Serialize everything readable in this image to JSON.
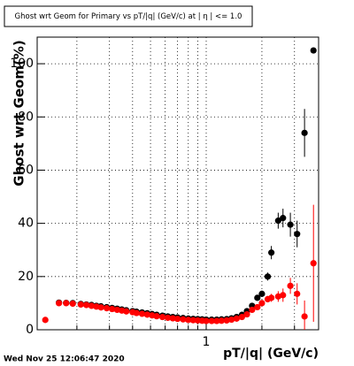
{
  "chart_data": {
    "type": "scatter",
    "title": "Ghost wrt Geom for Primary vs pT/|q| (GeV/c) at | η | <= 1.0",
    "x_label": "pT/|q| (GeV/c)",
    "y_label": "Ghost wrt Geom(%)",
    "date": "Wed Nov 25 12:06:47 2020",
    "log_x": true,
    "grid": true,
    "xlim": [
      0.122,
      4.05
    ],
    "ylim": [
      0,
      110
    ],
    "xticks": [
      1
    ],
    "xminorticks": [
      0.2,
      0.3,
      0.4,
      0.5,
      0.6,
      0.7,
      0.8,
      0.9,
      2,
      3
    ],
    "yticks": [
      0,
      20,
      40,
      60,
      80,
      100
    ],
    "series": [
      {
        "color": "#000000",
        "x": [
          0.16,
          0.175,
          0.19,
          0.21,
          0.225,
          0.24,
          0.255,
          0.27,
          0.29,
          0.31,
          0.33,
          0.35,
          0.37,
          0.4,
          0.42,
          0.45,
          0.48,
          0.51,
          0.54,
          0.58,
          0.62,
          0.66,
          0.7,
          0.75,
          0.8,
          0.85,
          0.9,
          0.95,
          1.0,
          1.07,
          1.14,
          1.21,
          1.29,
          1.37,
          1.46,
          1.56,
          1.66,
          1.77,
          1.89,
          2.0,
          2.15,
          2.25,
          2.45,
          2.6,
          2.85,
          3.1,
          3.4,
          3.8
        ],
        "values": [
          10.2,
          10.1,
          10.0,
          9.7,
          9.5,
          9.3,
          9.0,
          8.8,
          8.5,
          8.2,
          7.9,
          7.6,
          7.3,
          7.0,
          6.8,
          6.5,
          6.2,
          5.9,
          5.6,
          5.3,
          5.0,
          4.8,
          4.6,
          4.4,
          4.2,
          4.1,
          4.0,
          3.9,
          3.8,
          3.8,
          3.8,
          3.9,
          4.0,
          4.3,
          4.8,
          5.6,
          7.0,
          9,
          12,
          13.5,
          20,
          29,
          41,
          42,
          39.5,
          36,
          74,
          105
        ],
        "errors": [
          0.3,
          0.3,
          0.3,
          0.3,
          0.3,
          0.3,
          0.3,
          0.3,
          0.3,
          0.3,
          0.3,
          0.3,
          0.3,
          0.3,
          0.3,
          0.3,
          0.3,
          0.3,
          0.3,
          0.3,
          0.3,
          0.3,
          0.3,
          0.3,
          0.3,
          0.3,
          0.3,
          0.3,
          0.3,
          0.3,
          0.3,
          0.3,
          0.3,
          0.3,
          0.3,
          0.3,
          0.5,
          0.7,
          0.8,
          1.2,
          1.5,
          2.5,
          3,
          3.5,
          4.5,
          5,
          9,
          1
        ]
      },
      {
        "color": "#ff0000",
        "x": [
          0.135,
          0.16,
          0.175,
          0.19,
          0.21,
          0.225,
          0.24,
          0.255,
          0.27,
          0.29,
          0.31,
          0.33,
          0.35,
          0.37,
          0.4,
          0.42,
          0.45,
          0.48,
          0.51,
          0.54,
          0.58,
          0.62,
          0.66,
          0.7,
          0.75,
          0.8,
          0.85,
          0.9,
          0.95,
          1.0,
          1.07,
          1.14,
          1.21,
          1.29,
          1.37,
          1.46,
          1.56,
          1.66,
          1.77,
          1.89,
          2.0,
          2.15,
          2.25,
          2.45,
          2.6,
          2.85,
          3.1,
          3.4,
          3.8
        ],
        "values": [
          3.7,
          10.0,
          10.0,
          9.8,
          9.5,
          9.3,
          9.0,
          8.7,
          8.4,
          8.1,
          7.8,
          7.5,
          7.2,
          6.9,
          6.6,
          6.3,
          6.0,
          5.7,
          5.4,
          5.1,
          4.8,
          4.5,
          4.3,
          4.1,
          3.9,
          3.7,
          3.6,
          3.5,
          3.4,
          3.3,
          3.3,
          3.3,
          3.4,
          3.5,
          3.8,
          4.2,
          4.8,
          5.8,
          7.5,
          8.5,
          10,
          11.5,
          12,
          12.5,
          13,
          16.5,
          13.5,
          5,
          25
        ],
        "errors": [
          0.4,
          0.3,
          0.3,
          0.3,
          0.3,
          0.3,
          0.3,
          0.3,
          0.3,
          0.3,
          0.3,
          0.3,
          0.3,
          0.3,
          0.3,
          0.3,
          0.3,
          0.3,
          0.3,
          0.3,
          0.3,
          0.3,
          0.3,
          0.3,
          0.3,
          0.3,
          0.3,
          0.3,
          0.3,
          0.3,
          0.3,
          0.3,
          0.3,
          0.3,
          0.3,
          0.3,
          0.3,
          0.4,
          0.6,
          0.8,
          1,
          1.2,
          1.5,
          2,
          2.5,
          3,
          4,
          6,
          22
        ]
      }
    ]
  }
}
